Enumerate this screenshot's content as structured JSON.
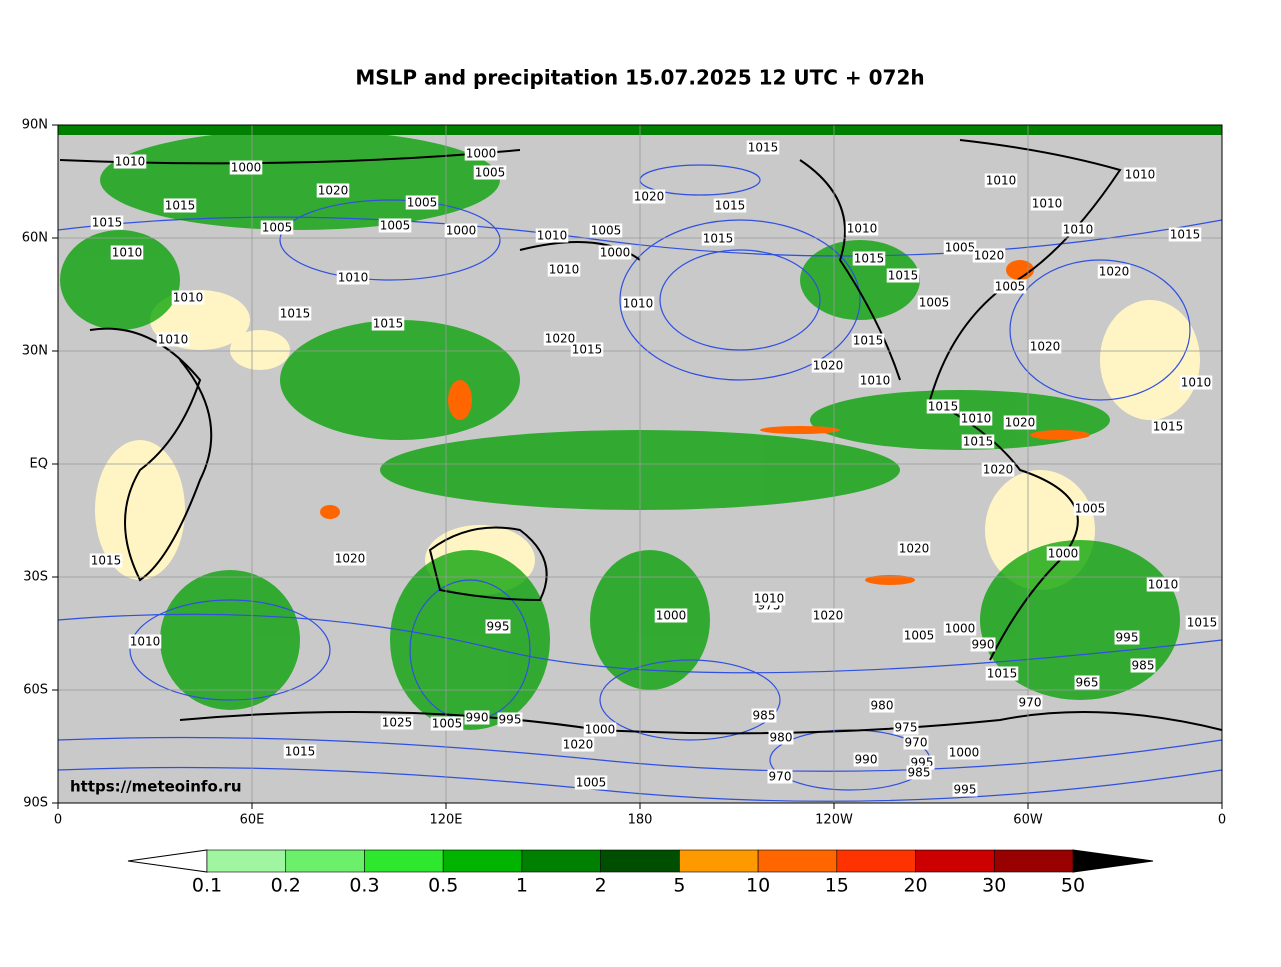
{
  "title": "MSLP and precipitation 15.07.2025 12 UTC + 072h",
  "map": {
    "lat_labels": [
      "90N",
      "60N",
      "30N",
      "EQ",
      "30S",
      "60S",
      "90S"
    ],
    "lon_labels": [
      "0",
      "60E",
      "120E",
      "180",
      "120W",
      "60W",
      "0"
    ],
    "watermark": "https://meteoinfo.ru",
    "isobar_labels": [
      "1010",
      "1000",
      "1000",
      "1005",
      "1015",
      "1020",
      "1005",
      "1015",
      "1010",
      "1015",
      "1005",
      "1000",
      "1005",
      "1005",
      "1000",
      "1010",
      "1015",
      "1010",
      "1020",
      "1010",
      "1010",
      "1015",
      "1010",
      "1010",
      "1005",
      "1015",
      "1020",
      "1005",
      "1020",
      "1015",
      "1010",
      "1020",
      "1010",
      "1015",
      "1015",
      "1005",
      "1010",
      "1015",
      "1010",
      "1010",
      "1015",
      "1020",
      "1015",
      "1010",
      "1020",
      "1015",
      "1010",
      "1015",
      "1010",
      "1015",
      "1020",
      "1020",
      "1005",
      "1000",
      "1010",
      "1015",
      "995",
      "985",
      "965",
      "1020",
      "1005",
      "1000",
      "990",
      "1015",
      "1000",
      "995",
      "980",
      "975",
      "970",
      "990",
      "985",
      "995",
      "970",
      "980",
      "985",
      "970",
      "1010",
      "1025",
      "1005",
      "990",
      "995",
      "1000",
      "1020",
      "1015",
      "1005",
      "1000",
      "975",
      "1020",
      "1010",
      "1020",
      "1015",
      "995"
    ]
  },
  "colorbar": {
    "levels": [
      0.1,
      0.2,
      0.3,
      0.5,
      1,
      2,
      5,
      10,
      15,
      20,
      30,
      50
    ],
    "colors": [
      "#a0f5a0",
      "#6cf06c",
      "#2ee82e",
      "#00b400",
      "#008000",
      "#004f00",
      "#ff9900",
      "#ff6600",
      "#ff3300",
      "#cc0000",
      "#990000"
    ]
  }
}
